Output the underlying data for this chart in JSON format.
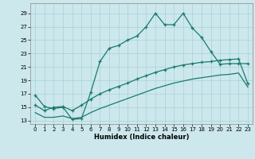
{
  "title": "",
  "xlabel": "Humidex (Indice chaleur)",
  "bg_color": "#cce8ec",
  "grid_color": "#a8d0d8",
  "line_color": "#1a7a6e",
  "xlim": [
    -0.5,
    23.5
  ],
  "ylim": [
    12.5,
    30.5
  ],
  "xticks": [
    0,
    1,
    2,
    3,
    4,
    5,
    6,
    7,
    8,
    9,
    10,
    11,
    12,
    13,
    14,
    15,
    16,
    17,
    18,
    19,
    20,
    21,
    22,
    23
  ],
  "yticks": [
    13,
    15,
    17,
    19,
    21,
    23,
    25,
    27,
    29
  ],
  "line1_x": [
    0,
    1,
    2,
    3,
    4,
    5,
    6,
    7,
    8,
    9,
    10,
    11,
    12,
    13,
    14,
    15,
    16,
    17,
    18,
    19,
    20,
    21,
    22,
    23
  ],
  "line1_y": [
    16.8,
    15.1,
    14.8,
    15.0,
    13.2,
    13.3,
    17.2,
    21.8,
    23.8,
    24.2,
    25.0,
    25.6,
    27.0,
    29.0,
    27.3,
    27.3,
    29.0,
    26.8,
    25.4,
    23.3,
    21.4,
    21.5,
    21.5,
    21.5
  ],
  "line2_x": [
    0,
    1,
    2,
    3,
    4,
    5,
    6,
    7,
    8,
    9,
    10,
    11,
    12,
    13,
    14,
    15,
    16,
    17,
    18,
    19,
    20,
    21,
    22,
    23
  ],
  "line2_y": [
    15.3,
    14.5,
    15.0,
    15.1,
    14.5,
    15.3,
    16.2,
    17.0,
    17.6,
    18.1,
    18.6,
    19.2,
    19.7,
    20.2,
    20.6,
    21.0,
    21.3,
    21.5,
    21.7,
    21.8,
    22.0,
    22.1,
    22.2,
    18.5
  ],
  "line3_x": [
    0,
    1,
    2,
    3,
    4,
    5,
    6,
    7,
    8,
    9,
    10,
    11,
    12,
    13,
    14,
    15,
    16,
    17,
    18,
    19,
    20,
    21,
    22,
    23
  ],
  "line3_y": [
    14.2,
    13.5,
    13.5,
    13.7,
    13.3,
    13.5,
    14.2,
    14.8,
    15.3,
    15.8,
    16.3,
    16.8,
    17.3,
    17.8,
    18.2,
    18.6,
    18.9,
    19.2,
    19.4,
    19.6,
    19.8,
    19.9,
    20.1,
    18.0
  ]
}
